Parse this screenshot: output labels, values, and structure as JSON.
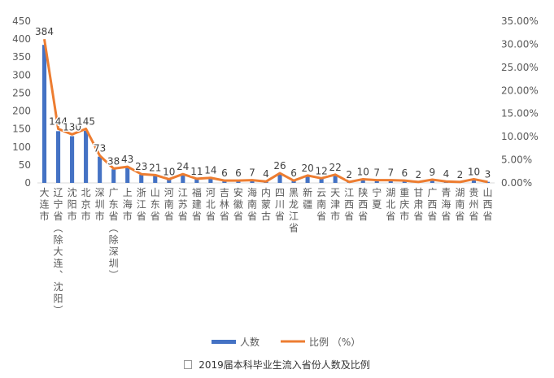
{
  "chart_data": {
    "type": "bar",
    "categories": [
      "大连市",
      "辽宁省（除大连、沈阳）",
      "沈阳市",
      "北京市",
      "深圳市",
      "广东省（除深圳）",
      "上海市",
      "浙江省",
      "山东省",
      "河南省",
      "江苏省",
      "福建省",
      "河北省",
      "吉林省",
      "安徽省",
      "海南省",
      "内蒙古",
      "四川省",
      "黑龙江省",
      "新疆",
      "云南省",
      "天津市",
      "江西省",
      "陕西省",
      "宁夏",
      "湖北省",
      "重庆市",
      "甘肃省",
      "广西省",
      "青海省",
      "湖南省",
      "贵州省",
      "山西省"
    ],
    "series": [
      {
        "name": "人数",
        "type": "bar",
        "axis": "left",
        "values": [
          384,
          144,
          130,
          145,
          73,
          38,
          43,
          23,
          21,
          10,
          24,
          11,
          14,
          6,
          6,
          7,
          4,
          26,
          6,
          20,
          12,
          22,
          2,
          10,
          7,
          7,
          6,
          2,
          9,
          4,
          2,
          10,
          3
        ]
      },
      {
        "name": "比例 （%）",
        "type": "line",
        "axis": "right",
        "values": [
          31.1,
          11.7,
          10.5,
          11.7,
          5.9,
          3.1,
          3.5,
          1.9,
          1.7,
          0.8,
          1.9,
          0.9,
          1.1,
          0.5,
          0.5,
          0.6,
          0.3,
          2.1,
          0.5,
          1.6,
          1.0,
          1.8,
          0.2,
          0.8,
          0.6,
          0.6,
          0.5,
          0.2,
          0.7,
          0.3,
          0.2,
          0.8,
          0.2
        ]
      }
    ],
    "y_left": {
      "ylim": [
        0,
        450
      ],
      "ticks": [
        "0",
        "50",
        "100",
        "150",
        "200",
        "250",
        "300",
        "350",
        "400",
        "450"
      ]
    },
    "y_right": {
      "ylim": [
        0,
        35
      ],
      "ticks": [
        "0.00%",
        "5.00%",
        "10.00%",
        "15.00%",
        "20.00%",
        "25.00%",
        "30.00%",
        "35.00%"
      ]
    },
    "colors": {
      "bar": "#4472C4",
      "line": "#ED7D31"
    },
    "grid": false,
    "legend": "bottom"
  },
  "caption": "2019届本科毕业生流入省份人数及比例"
}
